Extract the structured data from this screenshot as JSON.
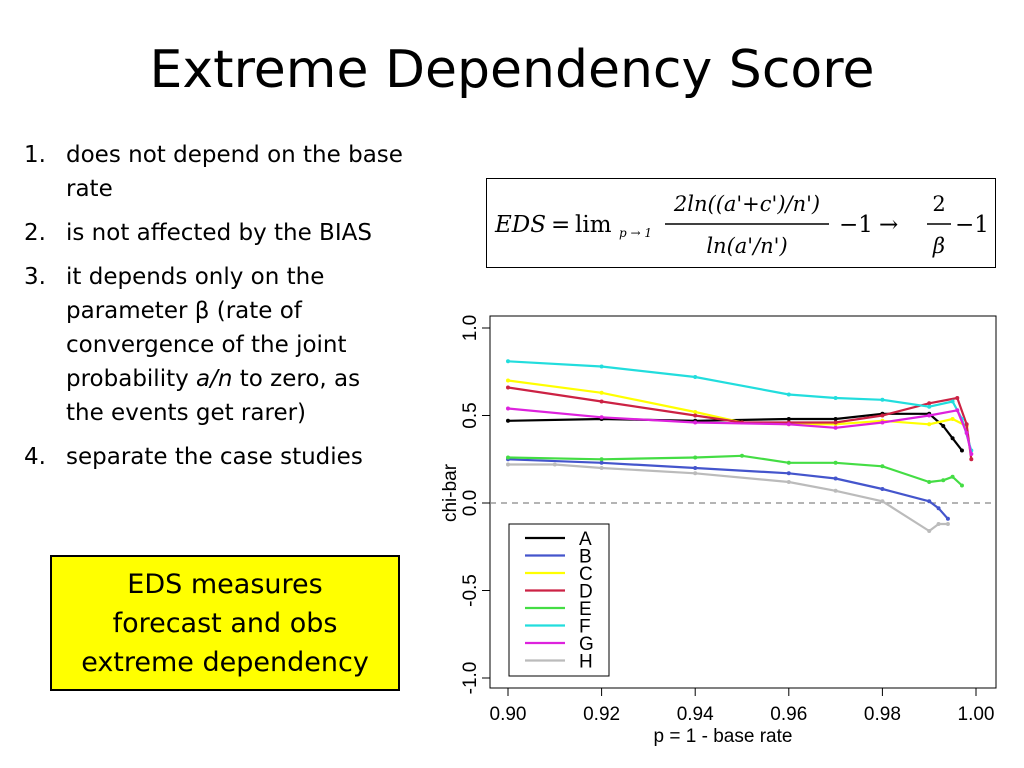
{
  "slide": {
    "title": "Extreme Dependency Score",
    "bullets": [
      {
        "num": "1.",
        "parts": [
          {
            "text": "does not depend on the base rate"
          }
        ]
      },
      {
        "num": "2.",
        "parts": [
          {
            "text": "is not affected by the BIAS"
          }
        ]
      },
      {
        "num": "3.",
        "parts": [
          {
            "text": "it depends only on the parameter β (rate of convergence of the joint probability "
          },
          {
            "text": "a/n",
            "italic": true
          },
          {
            "text": " to zero, as the events get rarer)"
          }
        ]
      },
      {
        "num": "4.",
        "parts": [
          {
            "text": "separate the case studies"
          }
        ]
      }
    ],
    "callout": [
      "EDS measures",
      "forecast and obs",
      "extreme dependency"
    ]
  },
  "formula": {
    "lhs": "EDS",
    "eq": "=",
    "lim": "lim",
    "lim_sub": "p → 1",
    "numerator": "2ln((a'+c')/n')",
    "denominator": "ln(a'/n')",
    "minus_one": "−1",
    "arrow": "→",
    "frac2_num": "2",
    "frac2_den": "β",
    "minus_one_2": "−1"
  },
  "chart_data": {
    "type": "line",
    "xlabel": "p = 1 - base rate",
    "ylabel": "chi-bar",
    "xlim": [
      0.9,
      1.0
    ],
    "ylim": [
      -1.0,
      1.0
    ],
    "xticks": [
      "0.90",
      "0.92",
      "0.94",
      "0.96",
      "0.98",
      "1.00"
    ],
    "yticks": [
      "-1.0",
      "-0.5",
      "0.0",
      "0.5",
      "1.0"
    ],
    "reference_line": {
      "y": 0.0,
      "style": "dashed",
      "color": "#888888"
    },
    "legend": {
      "position": "bottom-left"
    },
    "series": [
      {
        "name": "A",
        "color": "#000000",
        "x": [
          0.9,
          0.92,
          0.94,
          0.96,
          0.97,
          0.98,
          0.99,
          0.993,
          0.995,
          0.997
        ],
        "y": [
          0.47,
          0.48,
          0.47,
          0.48,
          0.48,
          0.51,
          0.51,
          0.44,
          0.37,
          0.3
        ]
      },
      {
        "name": "B",
        "color": "#4455cc",
        "x": [
          0.9,
          0.92,
          0.94,
          0.96,
          0.97,
          0.98,
          0.99,
          0.992,
          0.994
        ],
        "y": [
          0.25,
          0.23,
          0.2,
          0.17,
          0.14,
          0.08,
          0.01,
          -0.03,
          -0.09
        ]
      },
      {
        "name": "C",
        "color": "#ffff00",
        "x": [
          0.9,
          0.92,
          0.94,
          0.95,
          0.96,
          0.97,
          0.98,
          0.99,
          0.995,
          0.998
        ],
        "y": [
          0.7,
          0.63,
          0.52,
          0.46,
          0.45,
          0.45,
          0.47,
          0.45,
          0.48,
          0.44
        ]
      },
      {
        "name": "D",
        "color": "#cc2244",
        "x": [
          0.9,
          0.92,
          0.94,
          0.95,
          0.96,
          0.97,
          0.98,
          0.99,
          0.996,
          0.998,
          0.999
        ],
        "y": [
          0.66,
          0.58,
          0.5,
          0.46,
          0.46,
          0.46,
          0.5,
          0.57,
          0.6,
          0.45,
          0.25
        ]
      },
      {
        "name": "E",
        "color": "#44dd44",
        "x": [
          0.9,
          0.92,
          0.94,
          0.95,
          0.96,
          0.97,
          0.98,
          0.99,
          0.993,
          0.995,
          0.997
        ],
        "y": [
          0.26,
          0.25,
          0.26,
          0.27,
          0.23,
          0.23,
          0.21,
          0.12,
          0.13,
          0.15,
          0.1
        ]
      },
      {
        "name": "F",
        "color": "#22dddd",
        "x": [
          0.9,
          0.92,
          0.94,
          0.96,
          0.97,
          0.98,
          0.99,
          0.995,
          0.997,
          0.999
        ],
        "y": [
          0.81,
          0.78,
          0.72,
          0.62,
          0.6,
          0.59,
          0.55,
          0.58,
          0.48,
          0.3
        ]
      },
      {
        "name": "G",
        "color": "#dd22dd",
        "x": [
          0.9,
          0.92,
          0.94,
          0.96,
          0.97,
          0.98,
          0.99,
          0.996,
          0.998,
          0.999
        ],
        "y": [
          0.54,
          0.49,
          0.46,
          0.45,
          0.43,
          0.46,
          0.5,
          0.53,
          0.4,
          0.28
        ]
      },
      {
        "name": "H",
        "color": "#bbbbbb",
        "x": [
          0.9,
          0.91,
          0.92,
          0.94,
          0.96,
          0.97,
          0.98,
          0.99,
          0.992,
          0.994
        ],
        "y": [
          0.22,
          0.22,
          0.2,
          0.17,
          0.12,
          0.07,
          0.01,
          -0.16,
          -0.12,
          -0.12
        ]
      }
    ]
  }
}
